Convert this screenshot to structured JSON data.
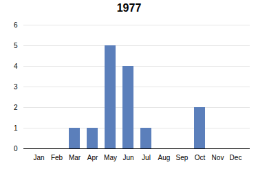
{
  "chart_data": {
    "type": "bar",
    "title": "1977",
    "categories": [
      "Jan",
      "Feb",
      "Mar",
      "Apr",
      "May",
      "Jun",
      "Jul",
      "Aug",
      "Sep",
      "Oct",
      "Nov",
      "Dec"
    ],
    "values": [
      0,
      0,
      1,
      1,
      5,
      4,
      1,
      0,
      0,
      2,
      0,
      0
    ],
    "color": "#5b7fbb",
    "ylim": [
      0,
      6
    ],
    "yticks": [
      0,
      1,
      2,
      3,
      4,
      5,
      6
    ],
    "grid": true
  }
}
